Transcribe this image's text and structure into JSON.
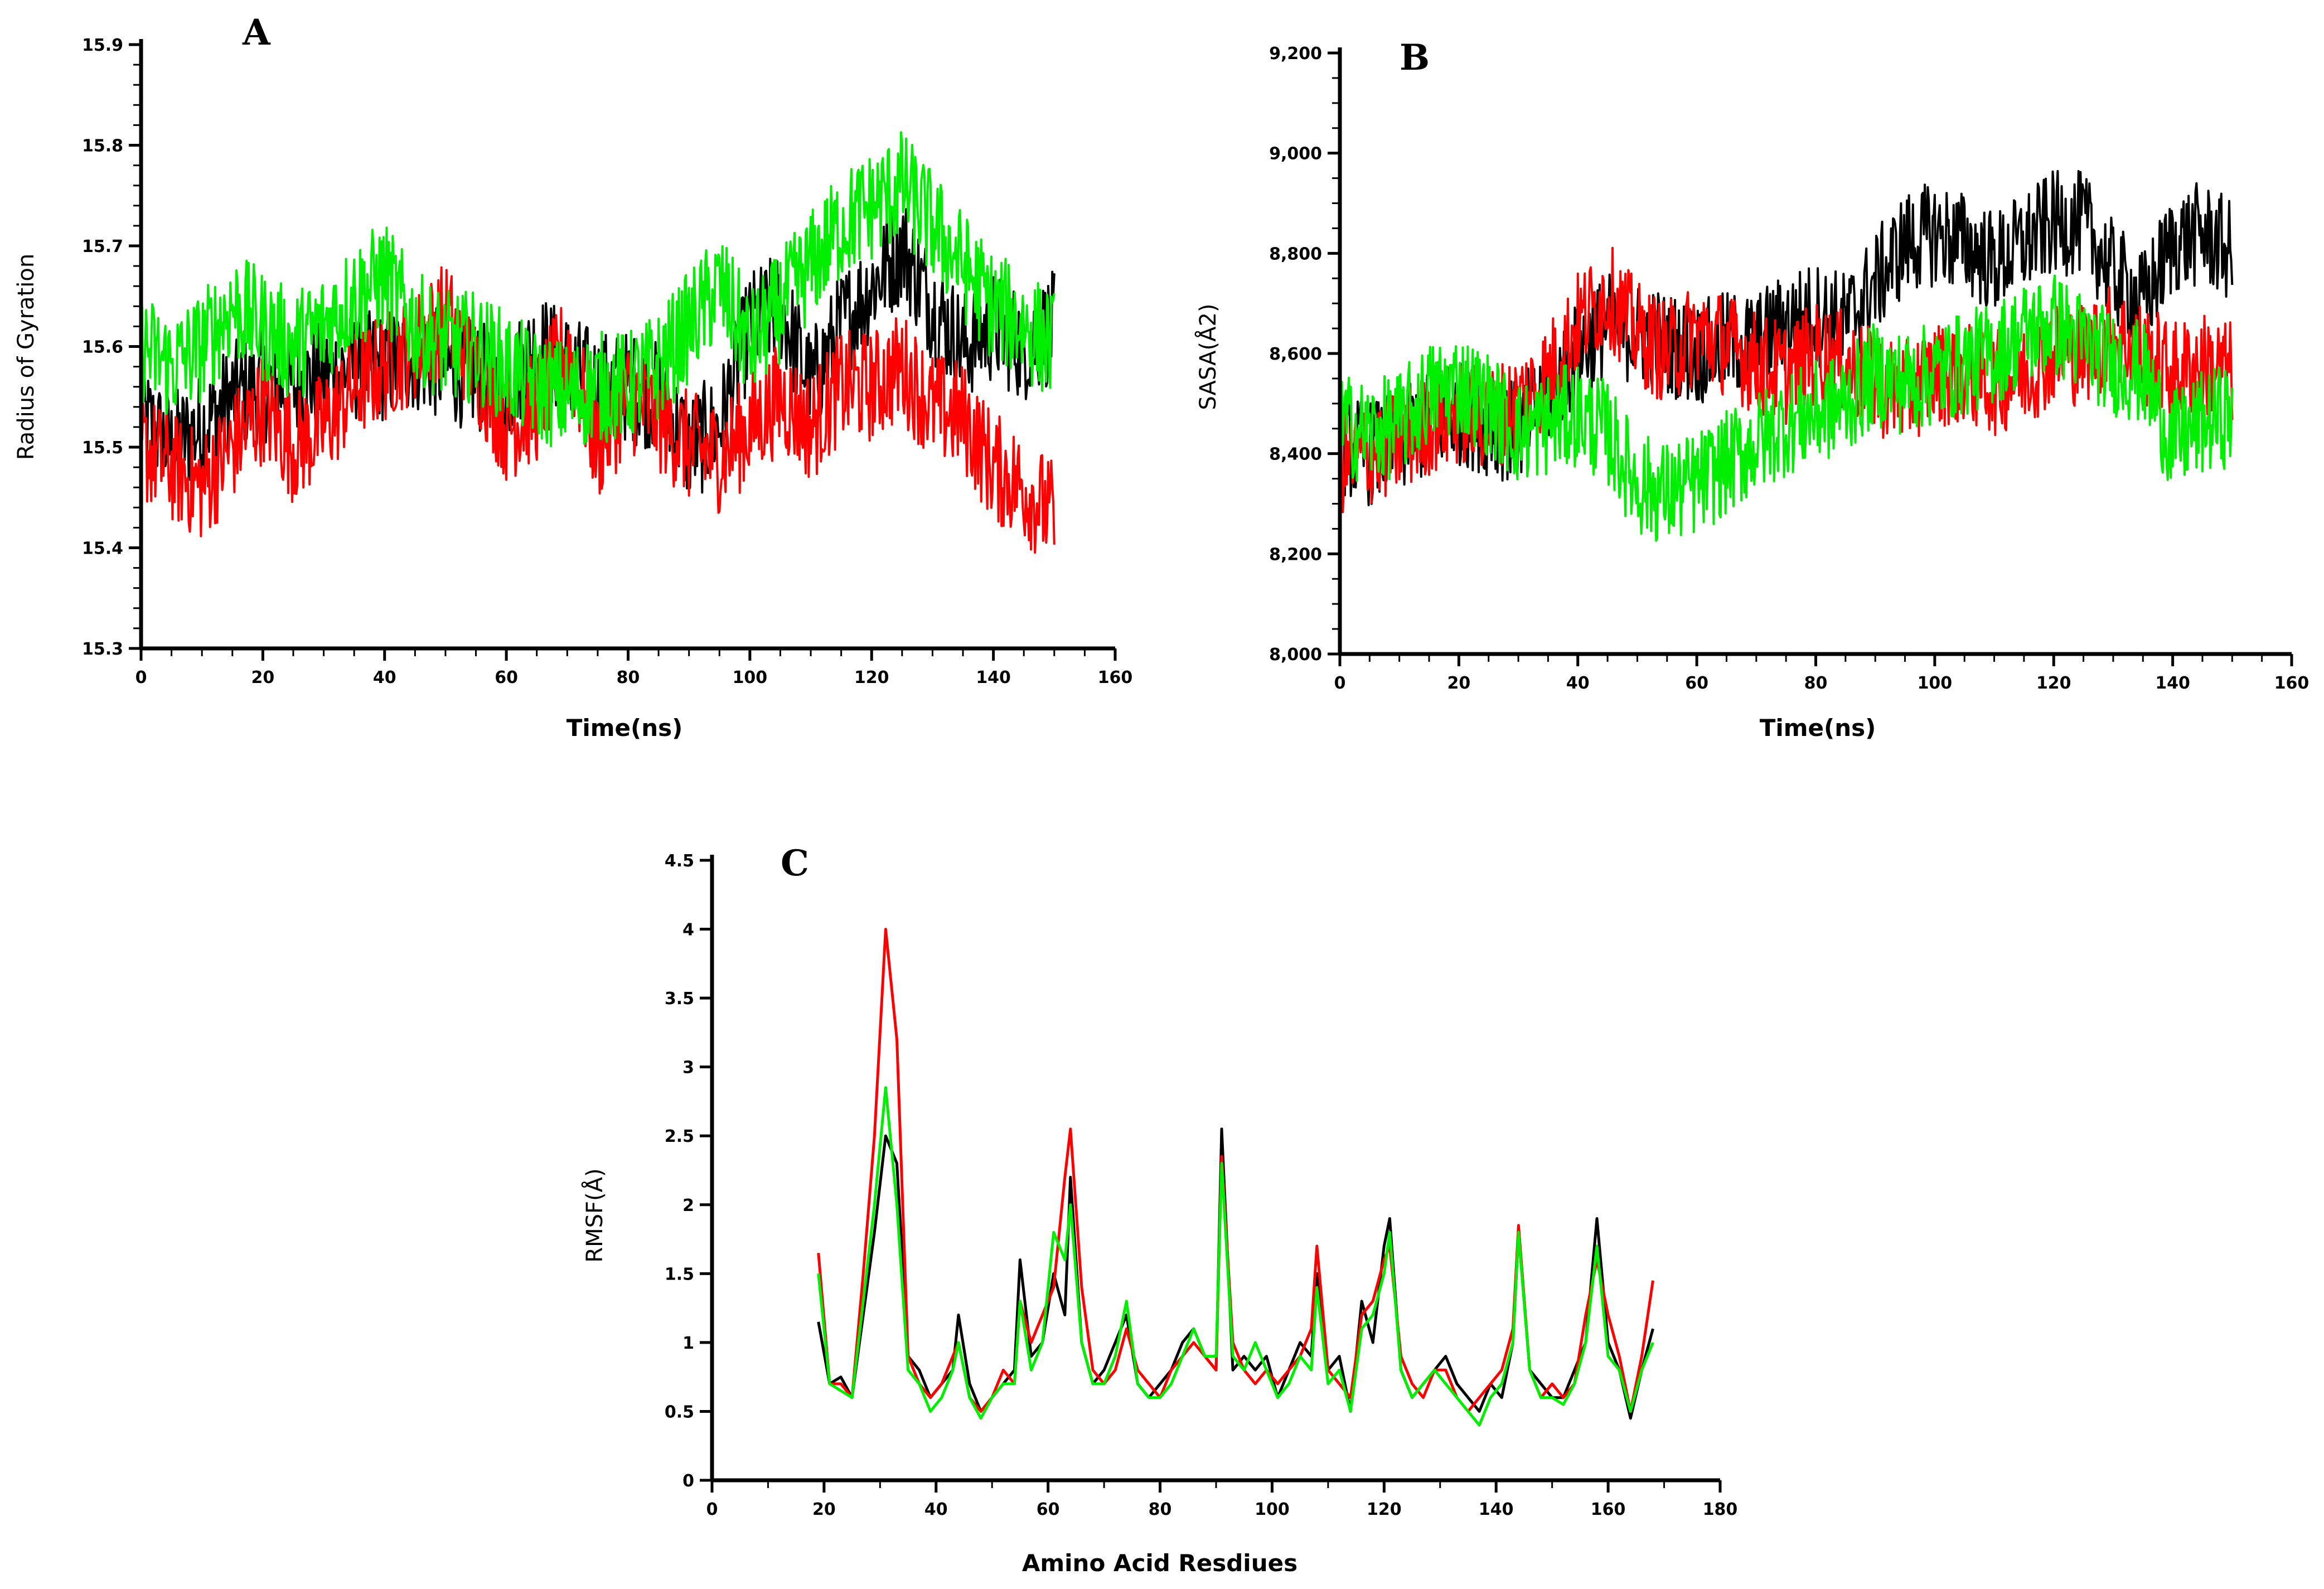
{
  "series_colors": [
    "#000000",
    "#ff0000",
    "#00ee00"
  ],
  "chart_data": [
    {
      "type": "line",
      "panel_label": "A",
      "title": "",
      "xlabel": "Time(ns)",
      "ylabel": "Radius of Gyration",
      "xlim": [
        0,
        160
      ],
      "ylim": [
        15.3,
        15.9
      ],
      "xticks": [
        0,
        20,
        40,
        60,
        80,
        100,
        120,
        140,
        160
      ],
      "xtick_labels": [
        "0",
        "20",
        "40",
        "60",
        "80",
        "100",
        "120",
        "140",
        "160"
      ],
      "yticks": [
        15.3,
        15.4,
        15.5,
        15.6,
        15.7,
        15.8,
        15.9
      ],
      "ytick_labels": [
        "15.3",
        "15.4",
        "15.5",
        "15.6",
        "15.7",
        "15.8",
        "15.9"
      ],
      "noise": [
        0.08,
        0.08,
        0.08
      ],
      "series": [
        {
          "name": "black",
          "color": "#000000",
          "x": [
            0,
            5,
            10,
            15,
            20,
            25,
            30,
            35,
            40,
            45,
            50,
            55,
            60,
            65,
            70,
            75,
            80,
            85,
            90,
            95,
            100,
            105,
            110,
            115,
            120,
            125,
            130,
            135,
            140,
            145,
            150
          ],
          "values": [
            15.53,
            15.5,
            15.52,
            15.55,
            15.56,
            15.56,
            15.57,
            15.58,
            15.58,
            15.59,
            15.58,
            15.57,
            15.56,
            15.6,
            15.58,
            15.56,
            15.56,
            15.55,
            15.5,
            15.52,
            15.62,
            15.64,
            15.56,
            15.62,
            15.66,
            15.7,
            15.64,
            15.6,
            15.62,
            15.6,
            15.62
          ]
        },
        {
          "name": "red",
          "color": "#ff0000",
          "x": [
            0,
            5,
            10,
            15,
            20,
            25,
            30,
            35,
            40,
            45,
            50,
            55,
            60,
            65,
            70,
            75,
            80,
            85,
            90,
            95,
            100,
            105,
            110,
            115,
            120,
            125,
            130,
            135,
            140,
            145,
            150
          ],
          "values": [
            15.5,
            15.48,
            15.46,
            15.5,
            15.54,
            15.5,
            15.52,
            15.56,
            15.58,
            15.6,
            15.63,
            15.58,
            15.52,
            15.54,
            15.6,
            15.5,
            15.55,
            15.53,
            15.5,
            15.49,
            15.52,
            15.55,
            15.52,
            15.56,
            15.56,
            15.58,
            15.54,
            15.53,
            15.48,
            15.46,
            15.43
          ]
        },
        {
          "name": "green",
          "color": "#00ee00",
          "x": [
            0,
            5,
            10,
            15,
            20,
            25,
            30,
            35,
            40,
            45,
            50,
            55,
            60,
            65,
            70,
            75,
            80,
            85,
            90,
            95,
            100,
            105,
            110,
            115,
            120,
            125,
            130,
            135,
            140,
            145,
            150
          ],
          "values": [
            15.6,
            15.58,
            15.6,
            15.64,
            15.62,
            15.6,
            15.62,
            15.65,
            15.67,
            15.62,
            15.6,
            15.6,
            15.58,
            15.56,
            15.55,
            15.56,
            15.56,
            15.58,
            15.62,
            15.66,
            15.6,
            15.64,
            15.68,
            15.72,
            15.74,
            15.76,
            15.72,
            15.68,
            15.64,
            15.62,
            15.6
          ]
        }
      ]
    },
    {
      "type": "line",
      "panel_label": "B",
      "title": "",
      "xlabel": "Time(ns)",
      "ylabel": "SASA(Å2)",
      "xlim": [
        0,
        160
      ],
      "ylim": [
        8000,
        9200
      ],
      "xticks": [
        0,
        20,
        40,
        60,
        80,
        100,
        120,
        140,
        160
      ],
      "xtick_labels": [
        "0",
        "20",
        "40",
        "60",
        "80",
        "100",
        "120",
        "140",
        "160"
      ],
      "yticks": [
        8000,
        8200,
        8400,
        8600,
        8800,
        9000,
        9200
      ],
      "ytick_labels": [
        "8,000",
        "8,200",
        "8,400",
        "8,600",
        "8,800",
        "9,000",
        "9,200"
      ],
      "noise": [
        150,
        150,
        150
      ],
      "series": [
        {
          "name": "black",
          "color": "#000000",
          "x": [
            0,
            5,
            10,
            15,
            20,
            25,
            30,
            35,
            40,
            45,
            50,
            55,
            60,
            65,
            70,
            75,
            80,
            85,
            90,
            95,
            100,
            105,
            110,
            115,
            120,
            125,
            130,
            135,
            140,
            145,
            150
          ],
          "values": [
            8420,
            8400,
            8420,
            8460,
            8480,
            8460,
            8440,
            8520,
            8600,
            8660,
            8640,
            8620,
            8600,
            8620,
            8620,
            8660,
            8680,
            8660,
            8740,
            8820,
            8840,
            8820,
            8780,
            8820,
            8860,
            8860,
            8760,
            8700,
            8820,
            8840,
            8800
          ]
        },
        {
          "name": "red",
          "color": "#ff0000",
          "x": [
            0,
            5,
            10,
            15,
            20,
            25,
            30,
            35,
            40,
            45,
            50,
            55,
            60,
            65,
            70,
            75,
            80,
            85,
            90,
            95,
            100,
            105,
            110,
            115,
            120,
            125,
            130,
            135,
            140,
            145,
            150
          ],
          "values": [
            8380,
            8400,
            8420,
            8460,
            8480,
            8470,
            8500,
            8560,
            8660,
            8720,
            8640,
            8600,
            8640,
            8620,
            8580,
            8560,
            8600,
            8580,
            8540,
            8520,
            8560,
            8560,
            8540,
            8560,
            8600,
            8600,
            8640,
            8600,
            8560,
            8580,
            8560
          ]
        },
        {
          "name": "green",
          "color": "#00ee00",
          "x": [
            0,
            5,
            10,
            15,
            20,
            25,
            30,
            35,
            40,
            45,
            50,
            55,
            60,
            65,
            70,
            75,
            80,
            85,
            90,
            95,
            100,
            105,
            110,
            115,
            120,
            125,
            130,
            135,
            140,
            145,
            150
          ],
          "values": [
            8460,
            8440,
            8460,
            8520,
            8540,
            8500,
            8440,
            8460,
            8480,
            8440,
            8340,
            8320,
            8340,
            8380,
            8420,
            8460,
            8480,
            8500,
            8560,
            8540,
            8560,
            8580,
            8600,
            8640,
            8660,
            8620,
            8580,
            8560,
            8420,
            8460,
            8480
          ]
        }
      ]
    },
    {
      "type": "line",
      "panel_label": "C",
      "title": "",
      "xlabel": "Amino Acid Resdiues",
      "ylabel": "RMSF(Å)",
      "xlim": [
        0,
        180
      ],
      "ylim": [
        0,
        4.5
      ],
      "xticks": [
        0,
        20,
        40,
        60,
        80,
        100,
        120,
        140,
        160,
        180
      ],
      "xtick_labels": [
        "0",
        "20",
        "40",
        "60",
        "80",
        "100",
        "120",
        "140",
        "160",
        "180"
      ],
      "yticks": [
        0,
        0.5,
        1,
        1.5,
        2,
        2.5,
        3,
        3.5,
        4,
        4.5
      ],
      "ytick_labels": [
        "0",
        "0.5",
        "1",
        "1.5",
        "2",
        "2.5",
        "3",
        "3.5",
        "4",
        "4.5"
      ],
      "noise": [
        0,
        0,
        0
      ],
      "series": [
        {
          "name": "black",
          "color": "#000000",
          "x": [
            19,
            21,
            23,
            25,
            27,
            29,
            31,
            33,
            35,
            37,
            39,
            41,
            43,
            44,
            46,
            48,
            50,
            52,
            54,
            55,
            57,
            59,
            61,
            63,
            64,
            66,
            68,
            70,
            72,
            74,
            76,
            78,
            80,
            82,
            84,
            86,
            88,
            90,
            91,
            93,
            95,
            97,
            99,
            101,
            103,
            105,
            107,
            108,
            110,
            112,
            114,
            116,
            118,
            120,
            121,
            123,
            125,
            127,
            129,
            131,
            133,
            135,
            137,
            139,
            141,
            143,
            144,
            146,
            148,
            150,
            152,
            154,
            156,
            158,
            160,
            162,
            164,
            166,
            168
          ],
          "values": [
            1.15,
            0.7,
            0.75,
            0.6,
            1.2,
            1.8,
            2.5,
            2.3,
            0.9,
            0.8,
            0.6,
            0.7,
            0.8,
            1.2,
            0.7,
            0.5,
            0.6,
            0.7,
            0.8,
            1.6,
            0.9,
            1.0,
            1.5,
            1.2,
            2.2,
            1.0,
            0.7,
            0.8,
            1.0,
            1.2,
            0.7,
            0.6,
            0.7,
            0.8,
            1.0,
            1.1,
            0.9,
            0.8,
            2.55,
            0.8,
            0.9,
            0.8,
            0.9,
            0.6,
            0.8,
            1.0,
            0.9,
            1.5,
            0.8,
            0.9,
            0.5,
            1.3,
            1.0,
            1.7,
            1.9,
            0.8,
            0.6,
            0.7,
            0.8,
            0.9,
            0.7,
            0.6,
            0.5,
            0.7,
            0.6,
            1.0,
            1.8,
            0.8,
            0.7,
            0.6,
            0.6,
            0.8,
            1.0,
            1.9,
            1.0,
            0.8,
            0.45,
            0.8,
            1.1
          ]
        },
        {
          "name": "red",
          "color": "#ff0000",
          "x": [
            19,
            21,
            23,
            25,
            27,
            29,
            31,
            33,
            35,
            37,
            39,
            41,
            43,
            44,
            46,
            48,
            50,
            52,
            54,
            55,
            57,
            59,
            61,
            63,
            64,
            66,
            68,
            70,
            72,
            74,
            76,
            78,
            80,
            82,
            84,
            86,
            88,
            90,
            91,
            93,
            95,
            97,
            99,
            101,
            103,
            105,
            107,
            108,
            110,
            112,
            114,
            116,
            118,
            120,
            121,
            123,
            125,
            127,
            129,
            131,
            133,
            135,
            137,
            139,
            141,
            143,
            144,
            146,
            148,
            150,
            152,
            154,
            156,
            158,
            160,
            162,
            164,
            166,
            168
          ],
          "values": [
            1.65,
            0.7,
            0.7,
            0.6,
            1.5,
            2.5,
            4.0,
            3.2,
            0.9,
            0.7,
            0.6,
            0.7,
            0.9,
            1.0,
            0.6,
            0.5,
            0.6,
            0.8,
            0.7,
            1.3,
            1.0,
            1.2,
            1.4,
            2.2,
            2.55,
            1.4,
            0.8,
            0.7,
            0.8,
            1.1,
            0.8,
            0.7,
            0.6,
            0.8,
            0.9,
            1.0,
            0.9,
            0.8,
            2.35,
            1.0,
            0.8,
            0.7,
            0.8,
            0.7,
            0.8,
            0.9,
            1.1,
            1.7,
            0.8,
            0.7,
            0.6,
            1.2,
            1.3,
            1.6,
            1.7,
            0.9,
            0.7,
            0.6,
            0.8,
            0.8,
            0.6,
            0.5,
            0.6,
            0.7,
            0.8,
            1.1,
            1.85,
            0.8,
            0.6,
            0.7,
            0.6,
            0.7,
            1.2,
            1.6,
            1.2,
            0.9,
            0.5,
            0.9,
            1.45
          ]
        },
        {
          "name": "green",
          "color": "#00ee00",
          "x": [
            19,
            21,
            23,
            25,
            27,
            29,
            31,
            33,
            35,
            37,
            39,
            41,
            43,
            44,
            46,
            48,
            50,
            52,
            54,
            55,
            57,
            59,
            61,
            63,
            64,
            66,
            68,
            70,
            72,
            74,
            76,
            78,
            80,
            82,
            84,
            86,
            88,
            90,
            91,
            93,
            95,
            97,
            99,
            101,
            103,
            105,
            107,
            108,
            110,
            112,
            114,
            116,
            118,
            120,
            121,
            123,
            125,
            127,
            129,
            131,
            133,
            135,
            137,
            139,
            141,
            143,
            144,
            146,
            148,
            150,
            152,
            154,
            156,
            158,
            160,
            162,
            164,
            166,
            168
          ],
          "values": [
            1.5,
            0.7,
            0.65,
            0.6,
            1.3,
            2.0,
            2.85,
            2.0,
            0.8,
            0.7,
            0.5,
            0.6,
            0.8,
            1.0,
            0.6,
            0.45,
            0.6,
            0.7,
            0.7,
            1.3,
            0.8,
            1.0,
            1.8,
            1.6,
            2.0,
            1.0,
            0.7,
            0.7,
            0.9,
            1.3,
            0.7,
            0.6,
            0.6,
            0.7,
            0.9,
            1.1,
            0.9,
            0.9,
            2.3,
            0.9,
            0.8,
            1.0,
            0.8,
            0.6,
            0.7,
            0.9,
            0.8,
            1.4,
            0.7,
            0.8,
            0.5,
            1.1,
            1.2,
            1.5,
            1.8,
            0.8,
            0.6,
            0.7,
            0.8,
            0.7,
            0.6,
            0.5,
            0.4,
            0.6,
            0.7,
            1.0,
            1.8,
            0.8,
            0.6,
            0.6,
            0.55,
            0.7,
            1.0,
            1.7,
            0.9,
            0.8,
            0.5,
            0.8,
            1.0
          ]
        }
      ]
    }
  ]
}
